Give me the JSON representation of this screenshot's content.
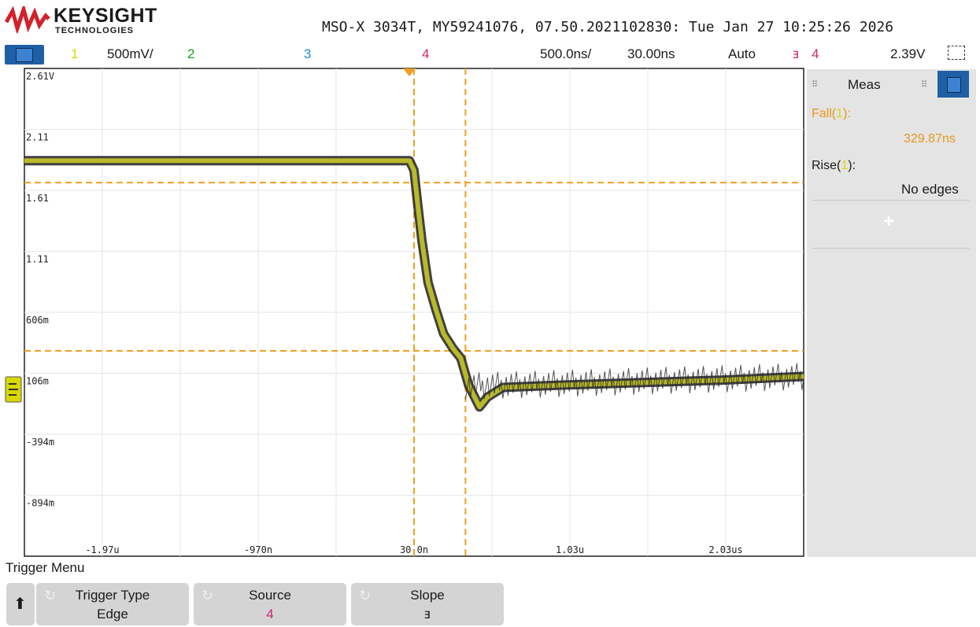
{
  "header": {
    "brand_name": "KEYSIGHT",
    "brand_sub": "TECHNOLOGIES",
    "device_info": "MSO-X 3034T, MY59241076, 07.50.2021102830: Tue Jan 27 10:25:26 2026"
  },
  "channel_bar": {
    "ch1_label": "1",
    "ch1_scale": "500mV/",
    "ch2_label": "2",
    "ch3_label": "3",
    "ch4_label": "4",
    "timebase": "500.0ns/",
    "delay": "30.00ns",
    "trigger_mode": "Auto",
    "trigger_slope_icon": "falling-edge-icon",
    "trigger_slope_glyph": "ⱻ",
    "trigger_source": "4",
    "trigger_level": "2.39V"
  },
  "graticule": {
    "y_labels": [
      "2.61V",
      "2.11",
      "1.61",
      "1.11",
      "606m",
      "106m",
      "-394m",
      "-894m"
    ],
    "x_labels": [
      "-1.97u",
      "-970n",
      "30.0n",
      "1.03u",
      "2.03us"
    ]
  },
  "meas": {
    "title": "Meas",
    "fall_label_prefix": "Fall(",
    "fall_label_ch": "1",
    "fall_label_suffix": "):",
    "fall_value": "329.87ns",
    "rise_label_prefix": "Rise(",
    "rise_label_ch": "1",
    "rise_label_suffix": "):",
    "rise_value": "No edges",
    "add_glyph": "+"
  },
  "trigger_menu": {
    "title": "Trigger Menu",
    "softkeys": [
      {
        "top": "Trigger Type",
        "bottom": "Edge"
      },
      {
        "top": "Source",
        "bottom": "4"
      },
      {
        "top": "Slope",
        "bottom": "ⱻ"
      }
    ],
    "up_arrow": "🡅"
  },
  "colors": {
    "ch1": "#d8d800",
    "ch2": "#1aa11a",
    "ch3": "#1d8fd6",
    "ch4": "#d6246e",
    "cursor": "#f0a020",
    "accent": "#1f5fa5"
  },
  "chart_data": {
    "type": "line",
    "title": "",
    "xlabel": "",
    "ylabel": "",
    "x_unit": "s",
    "y_unit": "V",
    "xlim": [
      -2.47e-06,
      2.53e-06
    ],
    "ylim": [
      -1.144,
      2.856
    ],
    "series": [
      {
        "name": "1",
        "x": [
          -2.47e-06,
          0.0,
          3e-08,
          5e-08,
          8e-08,
          1.2e-07,
          1.7e-07,
          2.2e-07,
          2.8e-07,
          3.3e-07,
          3.8e-07,
          4.5e-07,
          5e-07,
          6e-07,
          8e-07,
          1e-06,
          1.5e-06,
          2e-06,
          2.53e-06
        ],
        "values": [
          2.1,
          2.1,
          2.02,
          1.78,
          1.45,
          1.1,
          0.88,
          0.68,
          0.56,
          0.48,
          0.26,
          0.08,
          0.16,
          0.24,
          0.25,
          0.26,
          0.28,
          0.3,
          0.33
        ]
      }
    ],
    "cursors": {
      "vertical": [
        3e-08,
        3.6e-07
      ],
      "horizontal": [
        1.92,
        0.54
      ]
    }
  }
}
